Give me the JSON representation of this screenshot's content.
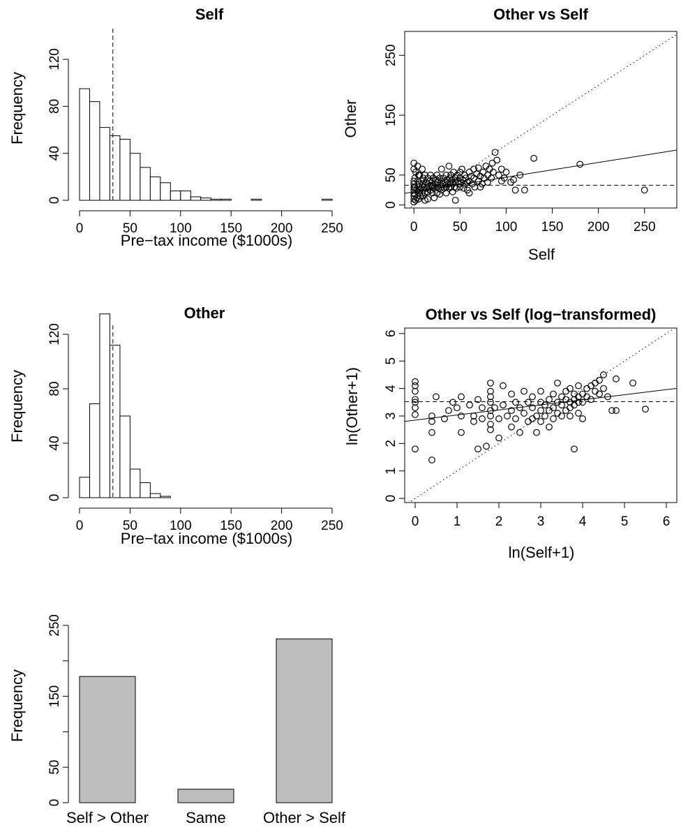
{
  "chart_data": [
    {
      "id": "hist-self",
      "type": "bar",
      "title": "Self",
      "xlabel": "Pre−tax income ($1000s)",
      "ylabel": "Frequency",
      "xlim": [
        0,
        250
      ],
      "ylim": [
        0,
        140
      ],
      "xticks": [
        "0",
        "50",
        "100",
        "150",
        "200",
        "250"
      ],
      "yticks": [
        "0",
        "40",
        "80",
        "120"
      ],
      "bin_width": 10,
      "bins_start": [
        0,
        10,
        20,
        30,
        40,
        50,
        60,
        70,
        80,
        90,
        100,
        110,
        120,
        130,
        140,
        150,
        160,
        170,
        180,
        190,
        200,
        210,
        220,
        230,
        240
      ],
      "values": [
        95,
        84,
        62,
        55,
        52,
        40,
        28,
        20,
        15,
        8,
        8,
        3,
        2,
        1,
        1,
        0,
        0,
        1,
        0,
        0,
        0,
        0,
        0,
        0,
        1
      ],
      "reference_line_x": 33,
      "colors": {
        "bar_fill": "#ffffff",
        "bar_stroke": "#000000"
      }
    },
    {
      "id": "scatter-raw",
      "type": "scatter",
      "title": "Other vs Self",
      "xlabel": "Self",
      "ylabel": "Other",
      "xlim": [
        -10,
        285
      ],
      "ylim": [
        -5,
        290
      ],
      "xticks": [
        "0",
        "50",
        "100",
        "150",
        "200",
        "250"
      ],
      "yticks": [
        "0",
        "50",
        "150",
        "250"
      ],
      "points": [
        [
          0,
          70
        ],
        [
          0,
          60
        ],
        [
          0,
          40
        ],
        [
          0,
          35
        ],
        [
          0,
          30
        ],
        [
          0,
          25
        ],
        [
          0,
          20
        ],
        [
          0,
          15
        ],
        [
          0,
          10
        ],
        [
          0,
          5
        ],
        [
          1,
          45
        ],
        [
          1,
          30
        ],
        [
          1,
          18
        ],
        [
          2,
          8
        ],
        [
          2,
          55
        ],
        [
          3,
          25
        ],
        [
          3,
          12
        ],
        [
          4,
          65
        ],
        [
          4,
          40
        ],
        [
          5,
          30
        ],
        [
          5,
          20
        ],
        [
          5,
          10
        ],
        [
          6,
          50
        ],
        [
          6,
          35
        ],
        [
          7,
          25
        ],
        [
          7,
          15
        ],
        [
          8,
          40
        ],
        [
          8,
          28
        ],
        [
          9,
          20
        ],
        [
          9,
          60
        ],
        [
          10,
          35
        ],
        [
          10,
          25
        ],
        [
          10,
          15
        ],
        [
          10,
          45
        ],
        [
          11,
          30
        ],
        [
          12,
          20
        ],
        [
          12,
          50
        ],
        [
          13,
          38
        ],
        [
          14,
          28
        ],
        [
          15,
          35
        ],
        [
          15,
          22
        ],
        [
          15,
          45
        ],
        [
          16,
          30
        ],
        [
          17,
          40
        ],
        [
          18,
          25
        ],
        [
          18,
          50
        ],
        [
          19,
          33
        ],
        [
          20,
          30
        ],
        [
          20,
          20
        ],
        [
          20,
          40
        ],
        [
          21,
          45
        ],
        [
          22,
          28
        ],
        [
          23,
          35
        ],
        [
          24,
          42
        ],
        [
          25,
          30
        ],
        [
          25,
          20
        ],
        [
          25,
          50
        ],
        [
          26,
          38
        ],
        [
          27,
          28
        ],
        [
          28,
          45
        ],
        [
          29,
          33
        ],
        [
          30,
          40
        ],
        [
          30,
          30
        ],
        [
          30,
          25
        ],
        [
          30,
          60
        ],
        [
          31,
          35
        ],
        [
          32,
          45
        ],
        [
          33,
          28
        ],
        [
          34,
          38
        ],
        [
          35,
          50
        ],
        [
          35,
          30
        ],
        [
          36,
          42
        ],
        [
          37,
          35
        ],
        [
          38,
          28
        ],
        [
          38,
          65
        ],
        [
          39,
          45
        ],
        [
          40,
          38
        ],
        [
          40,
          30
        ],
        [
          40,
          50
        ],
        [
          41,
          42
        ],
        [
          42,
          35
        ],
        [
          43,
          55
        ],
        [
          44,
          30
        ],
        [
          45,
          45
        ],
        [
          45,
          38
        ],
        [
          46,
          28
        ],
        [
          47,
          50
        ],
        [
          48,
          40
        ],
        [
          49,
          35
        ],
        [
          50,
          45
        ],
        [
          50,
          55
        ],
        [
          50,
          30
        ],
        [
          51,
          38
        ],
        [
          52,
          60
        ],
        [
          53,
          42
        ],
        [
          54,
          28
        ],
        [
          55,
          50
        ],
        [
          55,
          35
        ],
        [
          56,
          45
        ],
        [
          58,
          38
        ],
        [
          60,
          55
        ],
        [
          60,
          40
        ],
        [
          60,
          20
        ],
        [
          62,
          48
        ],
        [
          63,
          35
        ],
        [
          65,
          60
        ],
        [
          65,
          45
        ],
        [
          66,
          30
        ],
        [
          68,
          52
        ],
        [
          70,
          40
        ],
        [
          70,
          62
        ],
        [
          72,
          48
        ],
        [
          74,
          35
        ],
        [
          75,
          55
        ],
        [
          76,
          45
        ],
        [
          78,
          65
        ],
        [
          80,
          50
        ],
        [
          80,
          38
        ],
        [
          82,
          60
        ],
        [
          84,
          45
        ],
        [
          85,
          70
        ],
        [
          86,
          55
        ],
        [
          88,
          88
        ],
        [
          90,
          75
        ],
        [
          92,
          50
        ],
        [
          95,
          60
        ],
        [
          95,
          40
        ],
        [
          98,
          45
        ],
        [
          100,
          55
        ],
        [
          105,
          38
        ],
        [
          108,
          42
        ],
        [
          110,
          25
        ],
        [
          115,
          50
        ],
        [
          120,
          25
        ],
        [
          130,
          78
        ],
        [
          180,
          68
        ],
        [
          250,
          25
        ],
        [
          45,
          8
        ],
        [
          35,
          20
        ],
        [
          15,
          10
        ],
        [
          5,
          50
        ],
        [
          28,
          18
        ],
        [
          58,
          25
        ],
        [
          72,
          30
        ],
        [
          22,
          12
        ],
        [
          42,
          22
        ],
        [
          12,
          8
        ]
      ],
      "fit_line": {
        "intercept": 22,
        "slope": 0.245
      },
      "reference_line_y": 33,
      "diagonal": "y=x"
    },
    {
      "id": "hist-other",
      "type": "bar",
      "title": "Other",
      "xlabel": "Pre−tax income ($1000s)",
      "ylabel": "Frequency",
      "xlim": [
        0,
        250
      ],
      "ylim": [
        0,
        140
      ],
      "xticks": [
        "0",
        "50",
        "100",
        "150",
        "200",
        "250"
      ],
      "yticks": [
        "0",
        "40",
        "80",
        "120"
      ],
      "bin_width": 10,
      "bins_start": [
        0,
        10,
        20,
        30,
        40,
        50,
        60,
        70,
        80,
        90,
        100,
        110,
        120,
        130,
        140,
        150,
        160,
        170,
        180,
        190,
        200,
        210,
        220,
        230,
        240
      ],
      "values": [
        15,
        69,
        135,
        112,
        60,
        21,
        11,
        3,
        1,
        0,
        0,
        0,
        0,
        0,
        0,
        0,
        0,
        0,
        0,
        0,
        0,
        0,
        0,
        0,
        0
      ],
      "reference_line_x": 33,
      "colors": {
        "bar_fill": "#ffffff",
        "bar_stroke": "#000000"
      }
    },
    {
      "id": "scatter-log",
      "type": "scatter",
      "title": "Other vs Self (log−transformed)",
      "xlabel": "ln(Self+1)",
      "ylabel": "ln(Other+1)",
      "xlim": [
        -0.25,
        6.25
      ],
      "ylim": [
        -0.15,
        6.2
      ],
      "xticks": [
        "0",
        "1",
        "2",
        "3",
        "4",
        "5",
        "6"
      ],
      "yticks": [
        "0",
        "1",
        "2",
        "3",
        "4",
        "5",
        "6"
      ],
      "points": [
        [
          0,
          4.25
        ],
        [
          0,
          4.1
        ],
        [
          0,
          3.9
        ],
        [
          0,
          3.6
        ],
        [
          0,
          3.5
        ],
        [
          0,
          3.3
        ],
        [
          0,
          3.05
        ],
        [
          0,
          1.8
        ],
        [
          0.4,
          3.0
        ],
        [
          0.4,
          2.8
        ],
        [
          0.4,
          2.4
        ],
        [
          0.4,
          1.4
        ],
        [
          0.5,
          3.7
        ],
        [
          0.7,
          2.9
        ],
        [
          0.8,
          3.2
        ],
        [
          0.9,
          3.5
        ],
        [
          1.0,
          3.3
        ],
        [
          1.1,
          3.7
        ],
        [
          1.1,
          3.0
        ],
        [
          1.1,
          2.4
        ],
        [
          1.3,
          3.4
        ],
        [
          1.4,
          3.0
        ],
        [
          1.4,
          2.8
        ],
        [
          1.5,
          3.6
        ],
        [
          1.5,
          1.8
        ],
        [
          1.6,
          3.3
        ],
        [
          1.6,
          2.9
        ],
        [
          1.7,
          1.9
        ],
        [
          1.8,
          4.2
        ],
        [
          1.8,
          3.9
        ],
        [
          1.8,
          3.7
        ],
        [
          1.8,
          3.5
        ],
        [
          1.8,
          3.2
        ],
        [
          1.8,
          3.0
        ],
        [
          1.8,
          2.7
        ],
        [
          1.8,
          2.5
        ],
        [
          1.9,
          3.3
        ],
        [
          2.0,
          2.9
        ],
        [
          2.0,
          2.2
        ],
        [
          2.1,
          4.1
        ],
        [
          2.1,
          3.4
        ],
        [
          2.2,
          3.0
        ],
        [
          2.3,
          3.8
        ],
        [
          2.3,
          3.2
        ],
        [
          2.3,
          2.6
        ],
        [
          2.4,
          3.5
        ],
        [
          2.4,
          2.9
        ],
        [
          2.5,
          3.3
        ],
        [
          2.5,
          2.4
        ],
        [
          2.6,
          3.1
        ],
        [
          2.6,
          3.9
        ],
        [
          2.7,
          3.5
        ],
        [
          2.7,
          2.8
        ],
        [
          2.8,
          3.3
        ],
        [
          2.8,
          2.9
        ],
        [
          2.8,
          3.7
        ],
        [
          2.9,
          3.0
        ],
        [
          2.9,
          2.4
        ],
        [
          3.0,
          3.9
        ],
        [
          3.0,
          3.5
        ],
        [
          3.0,
          3.2
        ],
        [
          3.0,
          2.8
        ],
        [
          3.1,
          3.4
        ],
        [
          3.1,
          3.0
        ],
        [
          3.2,
          3.6
        ],
        [
          3.2,
          3.2
        ],
        [
          3.2,
          2.6
        ],
        [
          3.3,
          3.3
        ],
        [
          3.3,
          3.8
        ],
        [
          3.3,
          2.9
        ],
        [
          3.4,
          3.5
        ],
        [
          3.4,
          3.1
        ],
        [
          3.4,
          4.2
        ],
        [
          3.5,
          3.4
        ],
        [
          3.5,
          3.0
        ],
        [
          3.5,
          3.7
        ],
        [
          3.6,
          3.6
        ],
        [
          3.6,
          3.2
        ],
        [
          3.6,
          3.9
        ],
        [
          3.7,
          3.5
        ],
        [
          3.7,
          3.3
        ],
        [
          3.7,
          3.0
        ],
        [
          3.7,
          4.0
        ],
        [
          3.8,
          3.6
        ],
        [
          3.8,
          3.8
        ],
        [
          3.8,
          3.4
        ],
        [
          3.8,
          1.8
        ],
        [
          3.9,
          3.7
        ],
        [
          3.9,
          3.5
        ],
        [
          3.9,
          4.1
        ],
        [
          3.9,
          3.1
        ],
        [
          4.0,
          3.8
        ],
        [
          4.0,
          3.5
        ],
        [
          4.0,
          2.9
        ],
        [
          4.1,
          3.7
        ],
        [
          4.1,
          4.0
        ],
        [
          4.2,
          3.6
        ],
        [
          4.2,
          4.1
        ],
        [
          4.3,
          3.9
        ],
        [
          4.3,
          4.2
        ],
        [
          4.4,
          3.8
        ],
        [
          4.4,
          4.3
        ],
        [
          4.5,
          4.0
        ],
        [
          4.5,
          4.5
        ],
        [
          4.6,
          3.7
        ],
        [
          4.7,
          3.2
        ],
        [
          4.8,
          4.35
        ],
        [
          4.8,
          3.2
        ],
        [
          5.2,
          4.2
        ],
        [
          5.5,
          3.25
        ]
      ],
      "fit_line": {
        "intercept": 2.85,
        "slope": 0.185
      },
      "reference_line_y": 3.52,
      "diagonal": "y=x"
    },
    {
      "id": "bar-compare",
      "type": "bar",
      "title": "",
      "xlabel": "",
      "ylabel": "Frequency",
      "categories": [
        "Self > Other",
        "Same",
        "Other > Self"
      ],
      "values": [
        178,
        19,
        231
      ],
      "ylim": [
        0,
        250
      ],
      "yticks": [
        "0",
        "50",
        "150",
        "250"
      ],
      "colors": {
        "bar_fill": "#bebebe",
        "bar_stroke": "#000000"
      }
    }
  ]
}
